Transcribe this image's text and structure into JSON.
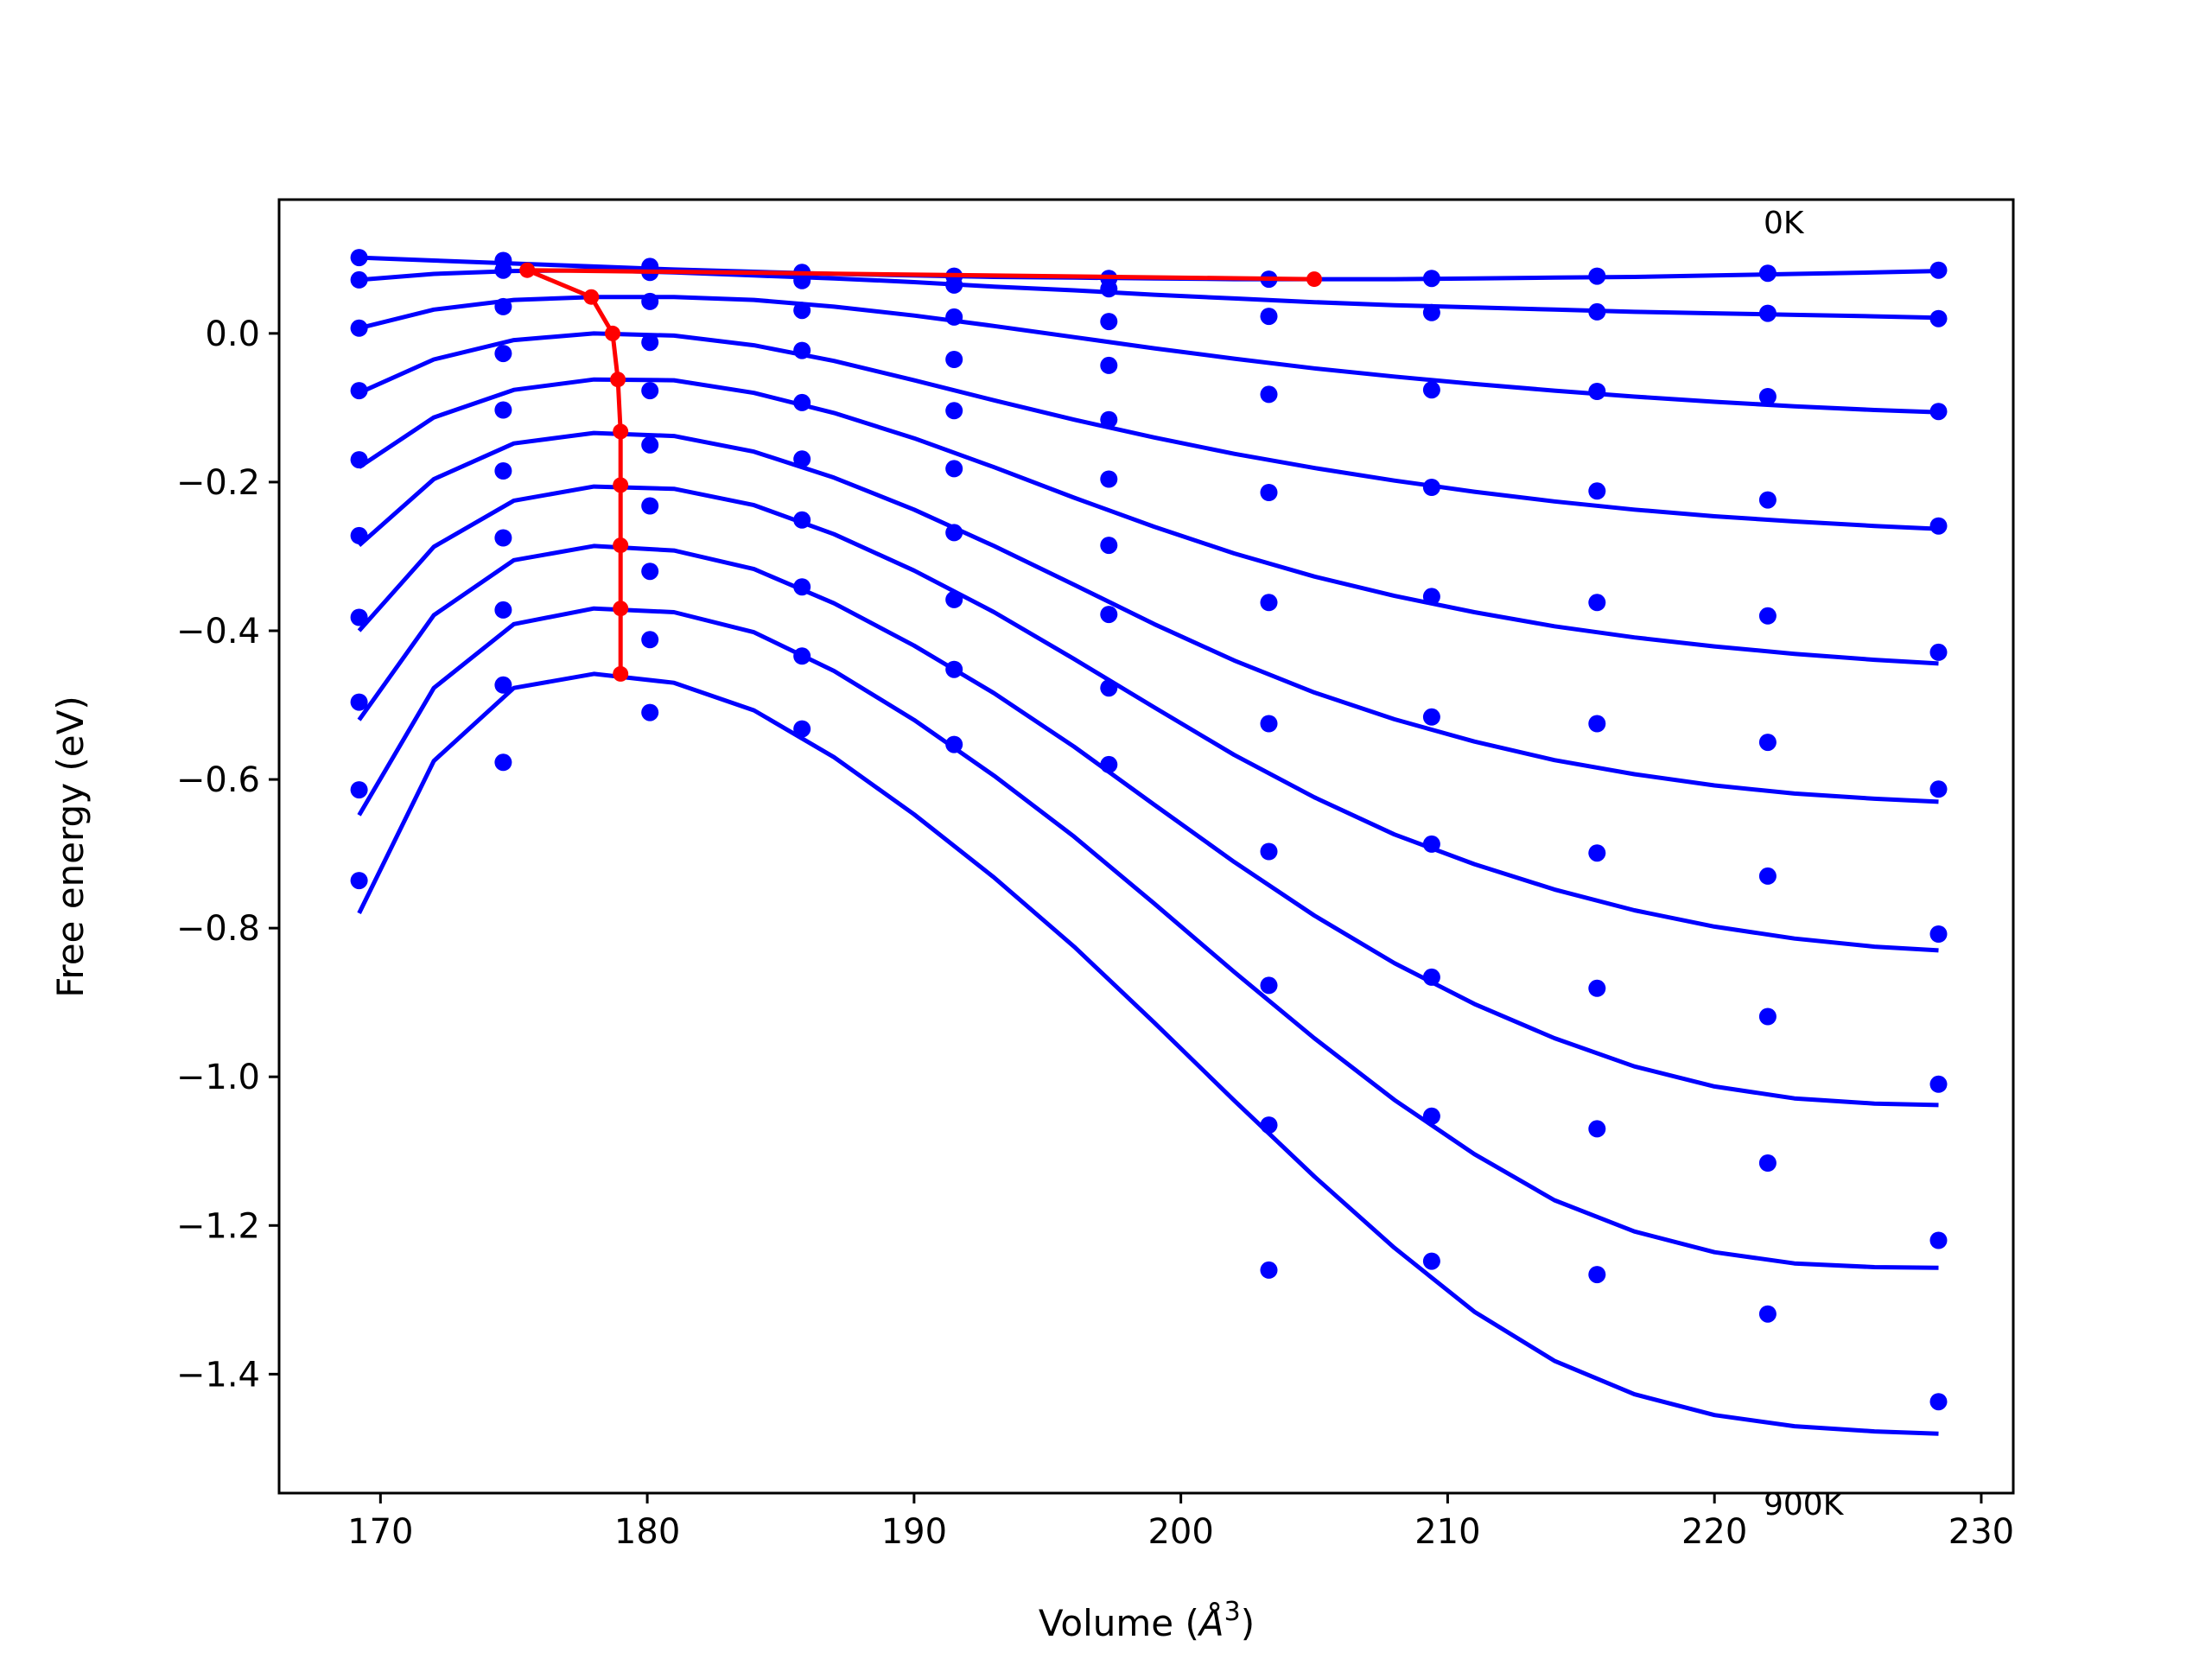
{
  "chart_data": {
    "type": "scatter",
    "title": "",
    "xlabel": "Volume (",
    "xlabel_unit": "Å",
    "xlabel_exp": "3",
    "xlabel_close": ")",
    "ylabel": "Free energy (eV)",
    "xlim": [
      166.2,
      231.2
    ],
    "ylim": [
      -1.56,
      0.18
    ],
    "xticks": [
      170,
      180,
      190,
      200,
      210,
      220,
      230
    ],
    "yticks": [
      0.0,
      -0.2,
      -0.4,
      -0.6,
      -0.8,
      -1.0,
      -1.2,
      -1.4
    ],
    "ytick_labels": [
      "0.0",
      "−0.2",
      "−0.4",
      "−0.6",
      "−0.8",
      "−1.0",
      "−1.2",
      "−1.4"
    ],
    "grid": false,
    "annotations": [
      {
        "text": "0K",
        "x": 222.0,
        "y": 0.145
      },
      {
        "text": "900K",
        "x": 222.0,
        "y": -1.57
      }
    ],
    "colors": {
      "points": "#0000ff",
      "curves": "#0000ff",
      "minimum_path": "#ff0000"
    },
    "volumes": [
      169.2,
      174.6,
      180.1,
      185.8,
      191.5,
      197.3,
      203.3,
      209.4,
      215.6,
      222.0,
      228.4
    ],
    "point_series": [
      {
        "values": [
          0.102,
          0.098,
          0.09,
          0.082,
          0.077,
          0.074,
          0.073,
          0.074,
          0.077,
          0.081,
          0.085
        ]
      },
      {
        "values": [
          0.072,
          0.085,
          0.082,
          0.071,
          0.065,
          0.06,
          0.023,
          0.028,
          0.029,
          0.027,
          0.02
        ]
      },
      {
        "values": [
          0.007,
          0.036,
          0.043,
          0.031,
          0.022,
          0.016,
          -0.082,
          -0.076,
          -0.078,
          -0.085,
          -0.105
        ]
      },
      {
        "values": [
          -0.077,
          -0.027,
          -0.012,
          -0.023,
          -0.035,
          -0.043,
          -0.214,
          -0.207,
          -0.212,
          -0.224,
          -0.259
        ]
      },
      {
        "values": [
          -0.17,
          -0.103,
          -0.077,
          -0.093,
          -0.104,
          -0.116,
          -0.362,
          -0.354,
          -0.362,
          -0.38,
          -0.429
        ]
      },
      {
        "values": [
          -0.272,
          -0.185,
          -0.15,
          -0.169,
          -0.182,
          -0.196,
          -0.525,
          -0.516,
          -0.525,
          -0.55,
          -0.613
        ]
      },
      {
        "values": [
          -0.382,
          -0.275,
          -0.232,
          -0.251,
          -0.268,
          -0.285,
          -0.697,
          -0.687,
          -0.699,
          -0.73,
          -0.808
        ]
      },
      {
        "values": [
          -0.496,
          -0.372,
          -0.32,
          -0.341,
          -0.358,
          -0.378,
          -0.877,
          -0.866,
          -0.881,
          -0.919,
          -1.01
        ]
      },
      {
        "values": [
          -0.614,
          -0.473,
          -0.412,
          -0.434,
          -0.452,
          -0.477,
          -1.065,
          -1.053,
          -1.07,
          -1.116,
          -1.22
        ]
      },
      {
        "values": [
          -0.736,
          -0.577,
          -0.51,
          -0.532,
          -0.553,
          -0.58,
          -1.26,
          -1.248,
          -1.266,
          -1.319,
          -1.437
        ]
      }
    ],
    "fit_x": [
      169.2,
      172.0,
      175.0,
      178.0,
      181.0,
      184.0,
      187.0,
      190.0,
      193.0,
      196.0,
      199.0,
      202.0,
      205.0,
      208.0,
      211.0,
      214.0,
      217.0,
      220.0,
      223.0,
      226.0,
      228.4
    ],
    "fit_series": [
      {
        "values": [
          0.102,
          0.098,
          0.094,
          0.09,
          0.086,
          0.083,
          0.08,
          0.078,
          0.076,
          0.075,
          0.074,
          0.073,
          0.073,
          0.073,
          0.074,
          0.075,
          0.076,
          0.078,
          0.08,
          0.082,
          0.084
        ]
      },
      {
        "values": [
          0.072,
          0.08,
          0.084,
          0.085,
          0.082,
          0.078,
          0.074,
          0.069,
          0.063,
          0.058,
          0.052,
          0.047,
          0.042,
          0.038,
          0.035,
          0.032,
          0.029,
          0.027,
          0.025,
          0.023,
          0.021
        ]
      },
      {
        "values": [
          0.007,
          0.032,
          0.045,
          0.049,
          0.049,
          0.045,
          0.036,
          0.024,
          0.01,
          -0.005,
          -0.02,
          -0.034,
          -0.047,
          -0.058,
          -0.068,
          -0.077,
          -0.085,
          -0.092,
          -0.098,
          -0.103,
          -0.106
        ]
      },
      {
        "values": [
          -0.08,
          -0.035,
          -0.009,
          0.0,
          -0.003,
          -0.016,
          -0.037,
          -0.063,
          -0.09,
          -0.116,
          -0.14,
          -0.162,
          -0.181,
          -0.198,
          -0.213,
          -0.226,
          -0.237,
          -0.246,
          -0.253,
          -0.259,
          -0.263
        ]
      },
      {
        "values": [
          -0.18,
          -0.113,
          -0.076,
          -0.062,
          -0.063,
          -0.08,
          -0.107,
          -0.141,
          -0.18,
          -0.221,
          -0.26,
          -0.296,
          -0.327,
          -0.353,
          -0.375,
          -0.394,
          -0.409,
          -0.421,
          -0.431,
          -0.439,
          -0.444
        ]
      },
      {
        "values": [
          -0.285,
          -0.196,
          -0.148,
          -0.134,
          -0.138,
          -0.159,
          -0.194,
          -0.237,
          -0.286,
          -0.338,
          -0.391,
          -0.44,
          -0.483,
          -0.519,
          -0.549,
          -0.574,
          -0.593,
          -0.608,
          -0.619,
          -0.626,
          -0.63
        ]
      },
      {
        "values": [
          -0.4,
          -0.287,
          -0.225,
          -0.206,
          -0.209,
          -0.231,
          -0.27,
          -0.319,
          -0.375,
          -0.438,
          -0.503,
          -0.567,
          -0.624,
          -0.674,
          -0.714,
          -0.748,
          -0.776,
          -0.798,
          -0.814,
          -0.825,
          -0.83
        ]
      },
      {
        "values": [
          -0.52,
          -0.379,
          -0.305,
          -0.286,
          -0.292,
          -0.317,
          -0.363,
          -0.42,
          -0.484,
          -0.556,
          -0.634,
          -0.711,
          -0.783,
          -0.847,
          -0.902,
          -0.948,
          -0.986,
          -1.013,
          -1.029,
          -1.036,
          -1.038
        ]
      },
      {
        "values": [
          -0.648,
          -0.477,
          -0.391,
          -0.37,
          -0.375,
          -0.402,
          -0.454,
          -0.52,
          -0.595,
          -0.677,
          -0.767,
          -0.859,
          -0.948,
          -1.031,
          -1.104,
          -1.166,
          -1.208,
          -1.236,
          -1.251,
          -1.256,
          -1.257
        ]
      },
      {
        "values": [
          -0.78,
          -0.575,
          -0.477,
          -0.458,
          -0.47,
          -0.507,
          -0.57,
          -0.647,
          -0.732,
          -0.825,
          -0.927,
          -1.032,
          -1.134,
          -1.23,
          -1.316,
          -1.382,
          -1.427,
          -1.455,
          -1.47,
          -1.477,
          -1.48
        ]
      }
    ],
    "minimum_path": {
      "x": [
        205.0,
        175.5,
        177.9,
        178.7,
        178.9,
        179.0,
        179.0,
        179.0,
        179.0,
        179.0
      ],
      "y": [
        0.073,
        0.085,
        0.049,
        0.0,
        -0.062,
        -0.132,
        -0.204,
        -0.285,
        -0.37,
        -0.458
      ]
    }
  }
}
